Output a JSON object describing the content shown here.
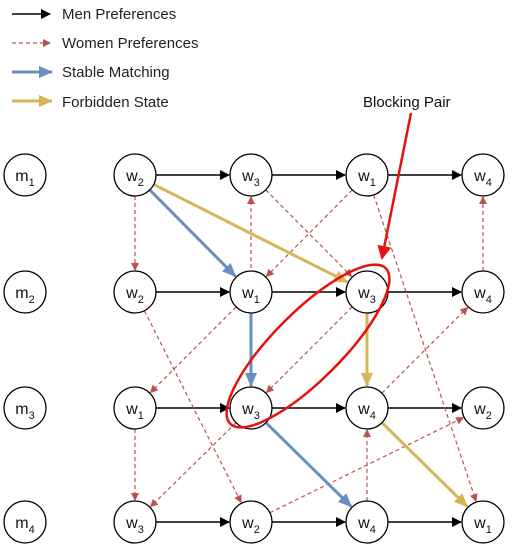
{
  "legend": [
    {
      "label": "Men Preferences",
      "color": "#000000",
      "style": "solid"
    },
    {
      "label": "Women Preferences",
      "color": "#b85450",
      "style": "dashed"
    },
    {
      "label": "Stable Matching",
      "color": "#6c8ebf",
      "style": "solid-thick"
    },
    {
      "label": "Forbidden State",
      "color": "#d6b656",
      "style": "solid-thick"
    }
  ],
  "men": [
    {
      "id": "m1",
      "base": "m",
      "sub": "1"
    },
    {
      "id": "m2",
      "base": "m",
      "sub": "2"
    },
    {
      "id": "m3",
      "base": "m",
      "sub": "3"
    },
    {
      "id": "m4",
      "base": "m",
      "sub": "4"
    }
  ],
  "preference_rows": [
    [
      "w2",
      "w3",
      "w1",
      "w4"
    ],
    [
      "w2",
      "w1",
      "w3",
      "w4"
    ],
    [
      "w1",
      "w3",
      "w4",
      "w2"
    ],
    [
      "w3",
      "w2",
      "w4",
      "w1"
    ]
  ],
  "women_edges": [
    [
      "0-0",
      "1-0"
    ],
    [
      "0-1",
      "1-2"
    ],
    [
      "0-2",
      "1-1"
    ],
    [
      "0-2",
      "3-3"
    ],
    [
      "1-0",
      "3-1"
    ],
    [
      "1-1",
      "2-0"
    ],
    [
      "1-2",
      "2-1"
    ],
    [
      "1-3",
      "0-3"
    ],
    [
      "2-0",
      "3-0"
    ],
    [
      "2-1",
      "3-0"
    ],
    [
      "2-1",
      "0-1"
    ],
    [
      "2-2",
      "1-3"
    ],
    [
      "3-2",
      "2-2"
    ],
    [
      "3-1",
      "2-3"
    ]
  ],
  "stable_matching": [
    [
      "0-0",
      "1-1"
    ],
    [
      "1-1",
      "2-1"
    ],
    [
      "2-1",
      "3-2"
    ]
  ],
  "forbidden": [
    [
      "0-0",
      "1-2"
    ],
    [
      "1-2",
      "2-2"
    ],
    [
      "2-2",
      "3-3"
    ]
  ],
  "callout": {
    "label": "Blocking Pair",
    "color": "#e81010"
  },
  "colors": {
    "men": "#000000",
    "women": "#b85450",
    "stable": "#6c8ebf",
    "forbidden": "#d6b656",
    "highlight": "#e81010"
  }
}
